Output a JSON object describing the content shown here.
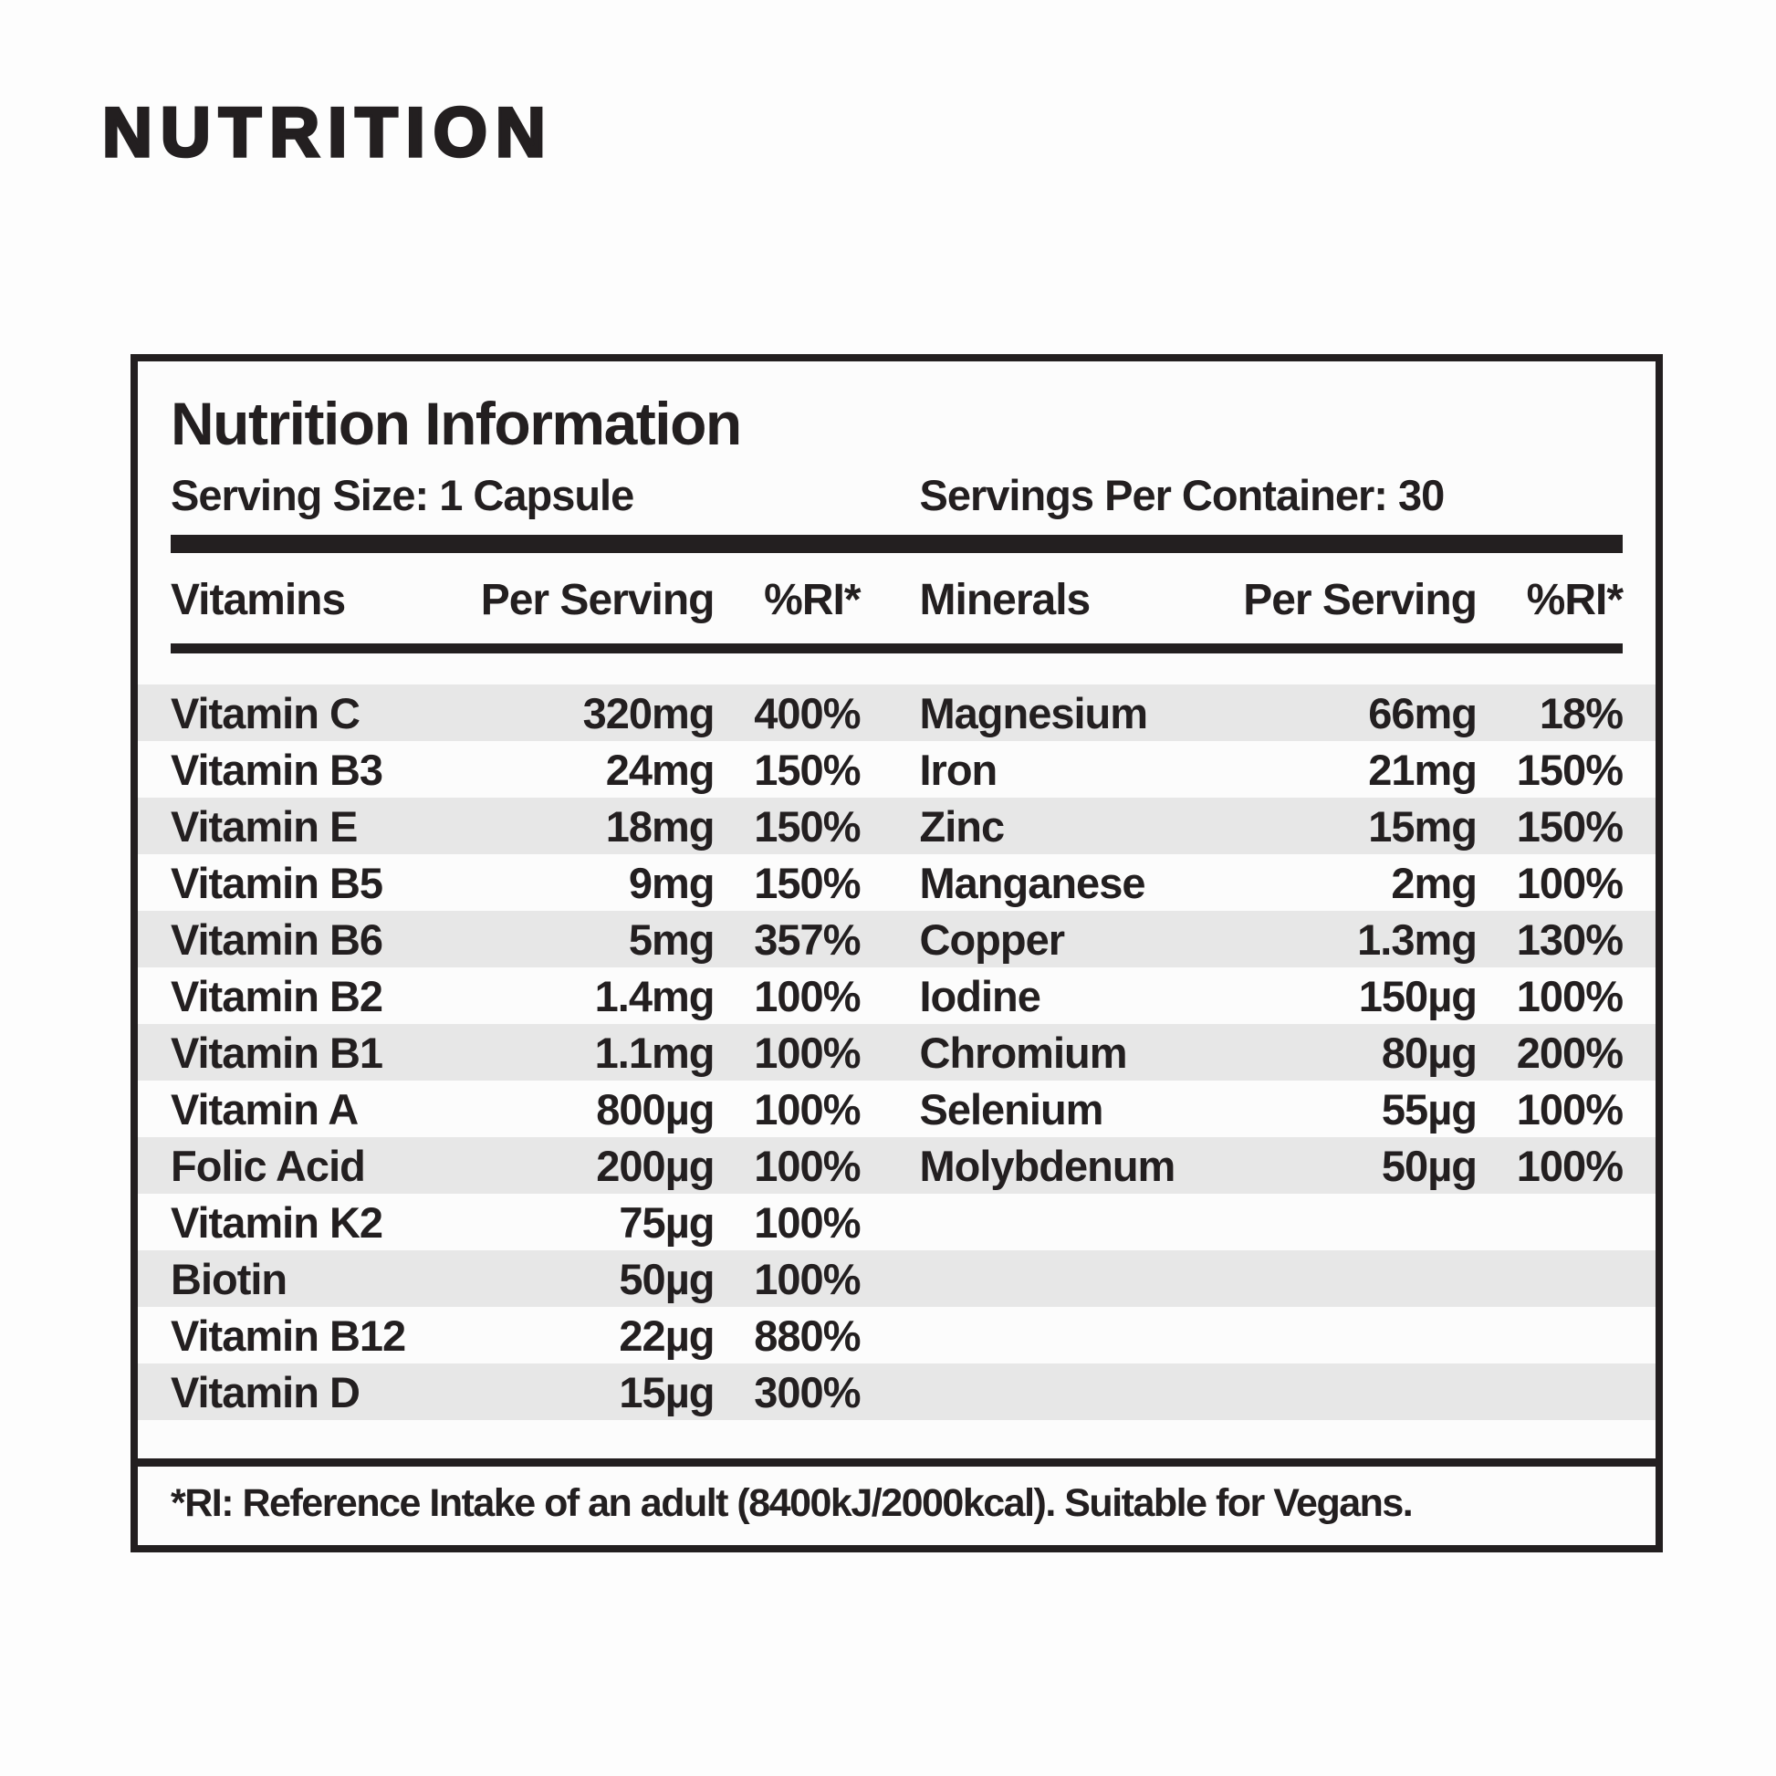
{
  "page": {
    "heading": "NUTRITION"
  },
  "panel": {
    "title": "Nutrition Information",
    "serving_size": "Serving Size: 1 Capsule",
    "servings_per_container": "Servings Per Container: 30",
    "columns": {
      "vitamins": "Vitamins",
      "vitamins_per_serving": "Per Serving",
      "vitamins_ri": "%RI*",
      "minerals": "Minerals",
      "minerals_per_serving": "Per Serving",
      "minerals_ri": "%RI*"
    },
    "vitamins": [
      {
        "name": "Vitamin C",
        "amount": "320mg",
        "ri": "400%"
      },
      {
        "name": "Vitamin B3",
        "amount": "24mg",
        "ri": "150%"
      },
      {
        "name": "Vitamin E",
        "amount": "18mg",
        "ri": "150%"
      },
      {
        "name": "Vitamin B5",
        "amount": "9mg",
        "ri": "150%"
      },
      {
        "name": "Vitamin B6",
        "amount": "5mg",
        "ri": "357%"
      },
      {
        "name": "Vitamin B2",
        "amount": "1.4mg",
        "ri": "100%"
      },
      {
        "name": "Vitamin B1",
        "amount": "1.1mg",
        "ri": "100%"
      },
      {
        "name": "Vitamin A",
        "amount": "800µg",
        "ri": "100%"
      },
      {
        "name": "Folic Acid",
        "amount": "200µg",
        "ri": "100%"
      },
      {
        "name": "Vitamin K2",
        "amount": "75µg",
        "ri": "100%"
      },
      {
        "name": "Biotin",
        "amount": "50µg",
        "ri": "100%"
      },
      {
        "name": "Vitamin B12",
        "amount": "22µg",
        "ri": "880%"
      },
      {
        "name": "Vitamin D",
        "amount": "15µg",
        "ri": "300%"
      }
    ],
    "minerals": [
      {
        "name": "Magnesium",
        "amount": "66mg",
        "ri": "18%"
      },
      {
        "name": "Iron",
        "amount": "21mg",
        "ri": "150%"
      },
      {
        "name": "Zinc",
        "amount": "15mg",
        "ri": "150%"
      },
      {
        "name": "Manganese",
        "amount": "2mg",
        "ri": "100%"
      },
      {
        "name": "Copper",
        "amount": "1.3mg",
        "ri": "130%"
      },
      {
        "name": "Iodine",
        "amount": "150µg",
        "ri": "100%"
      },
      {
        "name": "Chromium",
        "amount": "80µg",
        "ri": "200%"
      },
      {
        "name": "Selenium",
        "amount": "55µg",
        "ri": "100%"
      },
      {
        "name": "Molybdenum",
        "amount": "50µg",
        "ri": "100%"
      }
    ],
    "footnote": "*RI: Reference Intake of an adult (8400kJ/2000kcal). Suitable for Vegans."
  },
  "colors": {
    "text": "#231f20",
    "stripe": "#e7e7e7",
    "panel_bg": "#fcfcfc",
    "page_bg": "#fdfdfd"
  }
}
